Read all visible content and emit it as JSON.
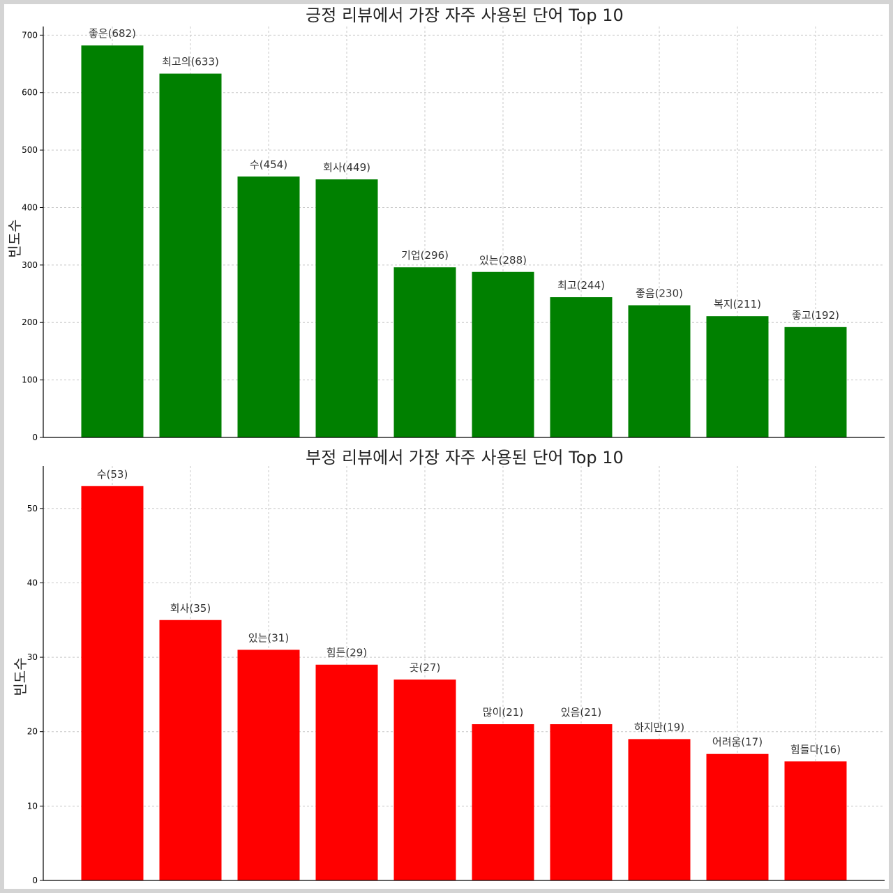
{
  "chart_data": [
    {
      "type": "bar",
      "title": "긍정 리뷰에서 가장 자주 사용된 단어 Top 10",
      "ylabel": "빈도수",
      "xlabel": "",
      "color": "#008000",
      "ylim": [
        0,
        715
      ],
      "yticks": [
        0,
        100,
        200,
        300,
        400,
        500,
        600,
        700
      ],
      "categories": [
        "좋은",
        "최고의",
        "수",
        "회사",
        "기업",
        "있는",
        "최고",
        "좋음",
        "복지",
        "좋고"
      ],
      "values": [
        682,
        633,
        454,
        449,
        296,
        288,
        244,
        230,
        211,
        192
      ],
      "data_labels": [
        "좋은(682)",
        "최고의(633)",
        "수(454)",
        "회사(449)",
        "기업(296)",
        "있는(288)",
        "최고(244)",
        "좋음(230)",
        "복지(211)",
        "좋고(192)"
      ],
      "grid": true
    },
    {
      "type": "bar",
      "title": "부정 리뷰에서 가장 자주 사용된 단어 Top 10",
      "ylabel": "빈도수",
      "xlabel": "",
      "color": "#ff0000",
      "ylim": [
        0,
        55.7
      ],
      "yticks": [
        0,
        10,
        20,
        30,
        40,
        50
      ],
      "categories": [
        "수",
        "회사",
        "있는",
        "힘든",
        "곳",
        "많이",
        "있음",
        "하지만",
        "어려움",
        "힘들다"
      ],
      "values": [
        53,
        35,
        31,
        29,
        27,
        21,
        21,
        19,
        17,
        16
      ],
      "data_labels": [
        "수(53)",
        "회사(35)",
        "있는(31)",
        "힘든(29)",
        "곳(27)",
        "많이(21)",
        "있음(21)",
        "하지만(19)",
        "어려움(17)",
        "힘들다(16)"
      ],
      "grid": true
    }
  ]
}
